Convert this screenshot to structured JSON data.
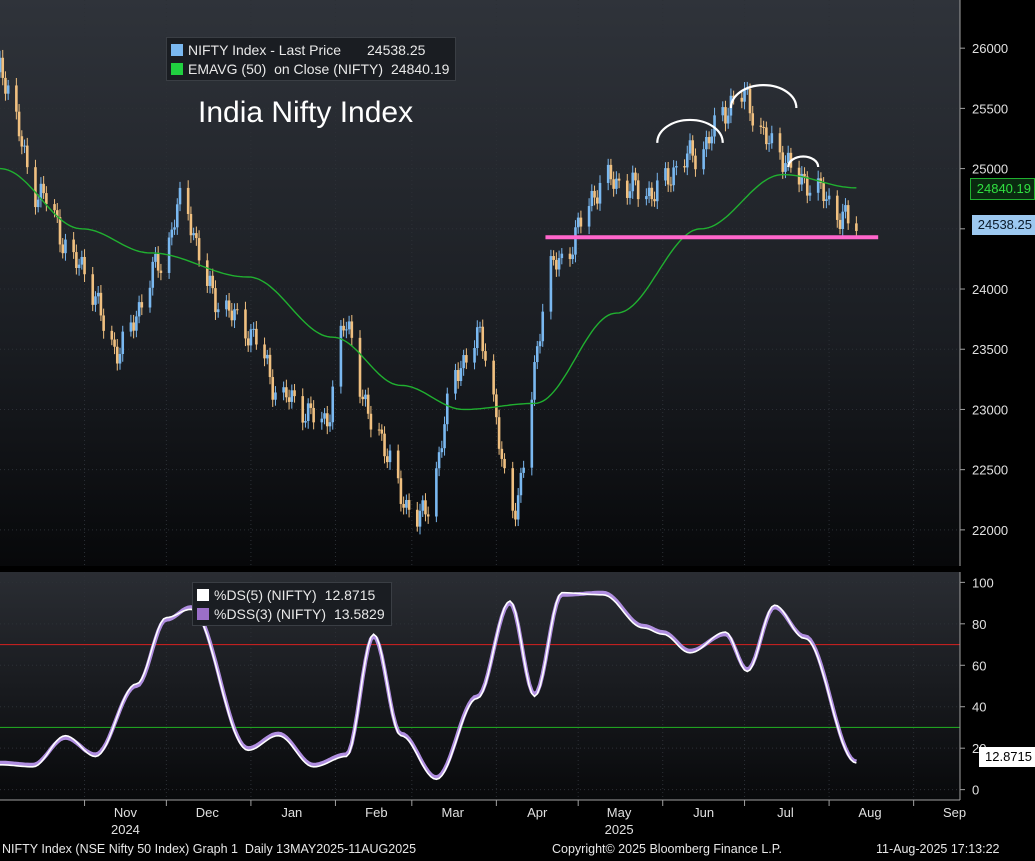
{
  "title": "India Nifty Index",
  "upper_legend": [
    {
      "label": "NIFTY Index - Last Price",
      "value": "24538.25",
      "color": "#7ab8f0"
    },
    {
      "label": "EMAVG (50)  on Close (NIFTY)",
      "value": "24840.19",
      "color": "#20d040"
    }
  ],
  "lower_legend": [
    {
      "label": "%DS(5) (NIFTY)",
      "value": "12.8715",
      "color": "#ffffff"
    },
    {
      "label": "%DSS(3) (NIFTY)",
      "value": "13.5829",
      "color": "#9b6fc8"
    }
  ],
  "price_tags": {
    "ema": "24840.19",
    "last": "24538.25",
    "ds": "12.8715"
  },
  "x_axis": {
    "months": [
      "Nov",
      "Dec",
      "Jan",
      "Feb",
      "Mar",
      "Apr",
      "May",
      "Jun",
      "Jul",
      "Aug",
      "Sep"
    ],
    "years": [
      "2024",
      "2025"
    ]
  },
  "footer": {
    "left": "NIFTY Index (NSE Nifty 50 Index) Graph 1  Daily 13MAY2025-11AUG2025",
    "center": "Copyright© 2025 Bloomberg Finance L.P.",
    "right": "11-Aug-2025 17:13:22"
  },
  "colors": {
    "up_bar": "#7ab8f0",
    "down_bar": "#f0c080",
    "ema": "#20b030",
    "support": "#ff66cc",
    "overbought": "#c02020",
    "oversold": "#20a020",
    "dss": "#b08ee0"
  },
  "chart_data": [
    {
      "type": "candlestick",
      "title": "India Nifty Index",
      "ylim": [
        21700,
        26400
      ],
      "yticks": [
        22000,
        22500,
        23000,
        23500,
        24000,
        24500,
        25000,
        25500,
        26000
      ],
      "xlim": [
        "2024-10-01",
        "2025-09-18"
      ],
      "series": [
        {
          "name": "NIFTY Index - Last Price",
          "last": 24538.25,
          "x": [
            "2024-10-01",
            "2024-10-15",
            "2024-10-30",
            "2024-11-13",
            "2024-11-29",
            "2024-12-06",
            "2024-12-20",
            "2024-12-31",
            "2025-01-13",
            "2025-01-28",
            "2025-02-05",
            "2025-02-14",
            "2025-02-28",
            "2025-03-04",
            "2025-03-20",
            "2025-03-26",
            "2025-04-07",
            "2025-04-22",
            "2025-05-12",
            "2025-05-28",
            "2025-06-11",
            "2025-06-30",
            "2025-07-11",
            "2025-07-22",
            "2025-08-11"
          ],
          "y": [
            25800,
            24800,
            24200,
            23500,
            24200,
            24700,
            23900,
            23650,
            23100,
            22900,
            23700,
            22900,
            22200,
            22100,
            23400,
            23600,
            22200,
            24200,
            24900,
            24800,
            25100,
            25600,
            25200,
            24900,
            24538.25
          ]
        },
        {
          "name": "EMAVG (50)  on Close (NIFTY)",
          "last": 24840.19,
          "x": [
            "2024-10-01",
            "2024-10-31",
            "2024-11-25",
            "2024-12-31",
            "2025-01-31",
            "2025-02-25",
            "2025-03-20",
            "2025-04-15",
            "2025-05-15",
            "2025-06-15",
            "2025-07-15",
            "2025-08-11"
          ],
          "y": [
            25000,
            24500,
            24300,
            24100,
            23600,
            23200,
            23000,
            23050,
            23800,
            24500,
            24950,
            24840.19
          ]
        }
      ],
      "annotations": [
        {
          "type": "support_line",
          "y": 24430,
          "from": "2025-04-19",
          "to": "2025-08-19"
        },
        {
          "type": "shoulder_arc",
          "from": "2025-05-30",
          "to": "2025-06-23",
          "label": "left shoulder"
        },
        {
          "type": "head_arc",
          "from": "2025-06-26",
          "to": "2025-07-20",
          "label": "head"
        },
        {
          "type": "shoulder_arc",
          "from": "2025-07-17",
          "to": "2025-07-28",
          "label": "right shoulder"
        }
      ]
    },
    {
      "type": "line",
      "ylim": [
        -5,
        105
      ],
      "yticks": [
        0,
        20,
        40,
        60,
        80,
        100
      ],
      "reference_lines": [
        70,
        30
      ],
      "series": [
        {
          "name": "%DSS(3) (NIFTY)",
          "last": 13.5829,
          "x": [
            "2024-10-01",
            "2024-10-13",
            "2024-10-25",
            "2024-11-05",
            "2024-11-20",
            "2024-12-01",
            "2024-12-10",
            "2024-12-31",
            "2025-01-11",
            "2025-01-24",
            "2025-02-05",
            "2025-02-15",
            "2025-02-25",
            "2025-03-10",
            "2025-03-25",
            "2025-04-06",
            "2025-04-15",
            "2025-04-25",
            "2025-05-10",
            "2025-05-25",
            "2025-06-01",
            "2025-06-11",
            "2025-06-24",
            "2025-07-02",
            "2025-07-12",
            "2025-07-23",
            "2025-08-11"
          ],
          "y": [
            13,
            12,
            25,
            17,
            50,
            82,
            88,
            20,
            27,
            12,
            17,
            74,
            27,
            6,
            45,
            90,
            46,
            94,
            95,
            79,
            76,
            67,
            75,
            58,
            88,
            74,
            13.58
          ]
        },
        {
          "name": "%DS(5) (NIFTY)",
          "last": 12.8715,
          "x": [
            "2024-10-01",
            "2024-10-13",
            "2024-10-25",
            "2024-11-05",
            "2024-11-20",
            "2024-12-01",
            "2024-12-10",
            "2024-12-31",
            "2025-01-11",
            "2025-01-24",
            "2025-02-05",
            "2025-02-15",
            "2025-02-25",
            "2025-03-10",
            "2025-03-25",
            "2025-04-06",
            "2025-04-15",
            "2025-04-25",
            "2025-05-10",
            "2025-05-25",
            "2025-06-01",
            "2025-06-11",
            "2025-06-24",
            "2025-07-02",
            "2025-07-12",
            "2025-07-23",
            "2025-08-11"
          ],
          "y": [
            12,
            11,
            26,
            16,
            51,
            83,
            87,
            19,
            26,
            11,
            16,
            75,
            26,
            5,
            44,
            91,
            45,
            95,
            94,
            78,
            75,
            66,
            76,
            57,
            89,
            73,
            12.87
          ]
        }
      ]
    }
  ]
}
